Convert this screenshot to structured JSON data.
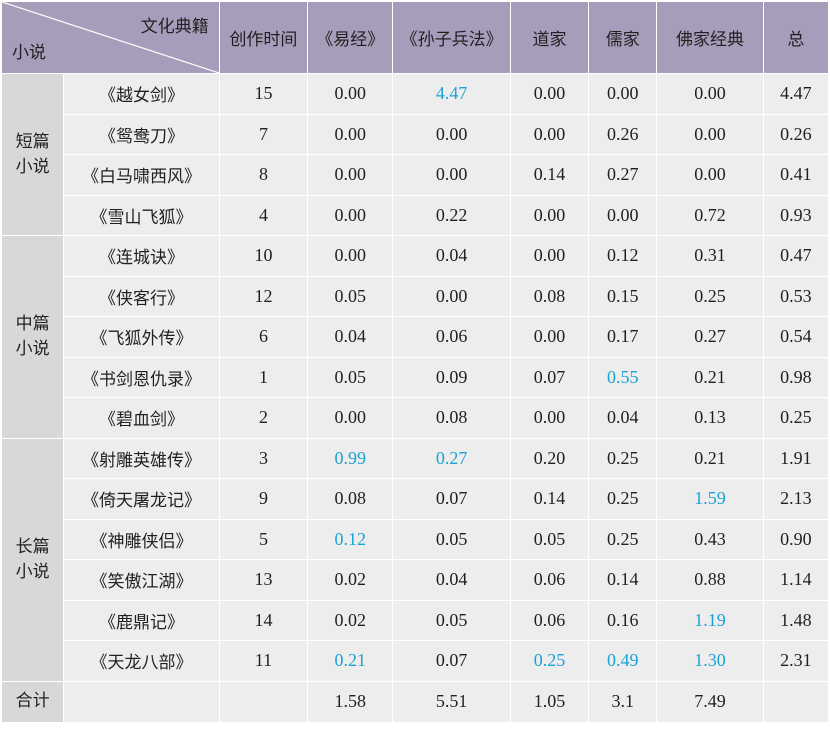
{
  "header": {
    "corner_top": "文化典籍",
    "corner_bottom": "小说",
    "columns": [
      "创作时间",
      "《易经》",
      "《孙子兵法》",
      "道家",
      "儒家",
      "佛家经典",
      "总"
    ]
  },
  "groups": [
    {
      "label": "短篇小说",
      "rows": [
        {
          "title": "《越女剑》",
          "time": "15",
          "values": [
            "0.00",
            "4.47",
            "0.00",
            "0.00",
            "0.00",
            "4.47"
          ],
          "highlight": [
            1
          ]
        },
        {
          "title": "《鸳鸯刀》",
          "time": "7",
          "values": [
            "0.00",
            "0.00",
            "0.00",
            "0.26",
            "0.00",
            "0.26"
          ],
          "highlight": []
        },
        {
          "title": "《白马啸西风》",
          "time": "8",
          "values": [
            "0.00",
            "0.00",
            "0.14",
            "0.27",
            "0.00",
            "0.41"
          ],
          "highlight": []
        },
        {
          "title": "《雪山飞狐》",
          "time": "4",
          "values": [
            "0.00",
            "0.22",
            "0.00",
            "0.00",
            "0.72",
            "0.93"
          ],
          "highlight": []
        }
      ]
    },
    {
      "label": "中篇小说",
      "rows": [
        {
          "title": "《连城诀》",
          "time": "10",
          "values": [
            "0.00",
            "0.04",
            "0.00",
            "0.12",
            "0.31",
            "0.47"
          ],
          "highlight": []
        },
        {
          "title": "《侠客行》",
          "time": "12",
          "values": [
            "0.05",
            "0.00",
            "0.08",
            "0.15",
            "0.25",
            "0.53"
          ],
          "highlight": []
        },
        {
          "title": "《飞狐外传》",
          "time": "6",
          "values": [
            "0.04",
            "0.06",
            "0.00",
            "0.17",
            "0.27",
            "0.54"
          ],
          "highlight": []
        },
        {
          "title": "《书剑恩仇录》",
          "time": "1",
          "values": [
            "0.05",
            "0.09",
            "0.07",
            "0.55",
            "0.21",
            "0.98"
          ],
          "highlight": [
            3
          ]
        },
        {
          "title": "《碧血剑》",
          "time": "2",
          "values": [
            "0.00",
            "0.08",
            "0.00",
            "0.04",
            "0.13",
            "0.25"
          ],
          "highlight": []
        }
      ]
    },
    {
      "label": "长篇小说",
      "rows": [
        {
          "title": "《射雕英雄传》",
          "time": "3",
          "values": [
            "0.99",
            "0.27",
            "0.20",
            "0.25",
            "0.21",
            "1.91"
          ],
          "highlight": [
            0,
            1
          ]
        },
        {
          "title": "《倚天屠龙记》",
          "time": "9",
          "values": [
            "0.08",
            "0.07",
            "0.14",
            "0.25",
            "1.59",
            "2.13"
          ],
          "highlight": [
            4
          ]
        },
        {
          "title": "《神雕侠侣》",
          "time": "5",
          "values": [
            "0.12",
            "0.05",
            "0.05",
            "0.25",
            "0.43",
            "0.90"
          ],
          "highlight": [
            0
          ]
        },
        {
          "title": "《笑傲江湖》",
          "time": "13",
          "values": [
            "0.02",
            "0.04",
            "0.06",
            "0.14",
            "0.88",
            "1.14"
          ],
          "highlight": []
        },
        {
          "title": "《鹿鼎记》",
          "time": "14",
          "values": [
            "0.02",
            "0.05",
            "0.06",
            "0.16",
            "1.19",
            "1.48"
          ],
          "highlight": [
            4
          ]
        },
        {
          "title": "《天龙八部》",
          "time": "11",
          "values": [
            "0.21",
            "0.07",
            "0.25",
            "0.49",
            "1.30",
            "2.31"
          ],
          "highlight": [
            0,
            2,
            3,
            4
          ]
        }
      ]
    }
  ],
  "total_row": {
    "label": "合计",
    "time": "",
    "values": [
      "1.58",
      "5.51",
      "1.05",
      "3.1",
      "7.49",
      ""
    ]
  },
  "colors": {
    "header_bg": "#a79dba",
    "cell_bg": "#ededed",
    "group_bg": "#d8d8da",
    "highlight": "#1aa3d6"
  }
}
